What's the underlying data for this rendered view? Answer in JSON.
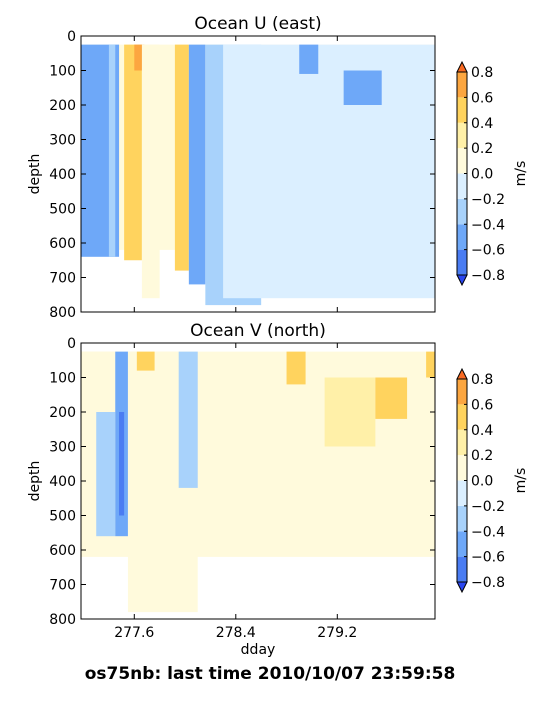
{
  "footer": {
    "text": "os75nb: last time 2010/10/07 23:59:58"
  },
  "colorbar": {
    "levels": [
      -0.8,
      -0.6,
      -0.4,
      -0.2,
      0.0,
      0.2,
      0.4,
      0.6,
      0.8
    ],
    "tick_labels": [
      "−0.8",
      "−0.6",
      "−0.4",
      "−0.2",
      "0.0",
      "0.2",
      "0.4",
      "0.6",
      "0.8"
    ],
    "colors": [
      "#2a46f0",
      "#4a7cf2",
      "#6ea8f8",
      "#a8d2fb",
      "#dbefff",
      "#fffadc",
      "#fff0a8",
      "#ffd35e",
      "#fca640",
      "#f96a22"
    ],
    "label": "m/s"
  },
  "chart_data": [
    {
      "type": "heatmap",
      "title": "Ocean U (east)",
      "xlabel": "",
      "ylabel": "depth",
      "xlim": [
        277.18,
        279.97
      ],
      "ylim": [
        800,
        0
      ],
      "x_ticks": [
        277.6,
        278.4,
        279.2
      ],
      "x_tick_labels": [
        "",
        "",
        ""
      ],
      "y_ticks": [
        0,
        100,
        200,
        300,
        400,
        500,
        600,
        700,
        800
      ],
      "y_tick_labels": [
        "0",
        "100",
        "200",
        "300",
        "400",
        "500",
        "600",
        "700",
        "800"
      ],
      "colorbar_label": "m/s",
      "features": [
        {
          "x": [
            277.18,
            277.48
          ],
          "depth": [
            0,
            640
          ],
          "value": -0.5
        },
        {
          "x": [
            277.4,
            277.45
          ],
          "depth": [
            0,
            640
          ],
          "value": -0.25
        },
        {
          "x": [
            277.52,
            277.66
          ],
          "depth": [
            0,
            650
          ],
          "value": 0.5
        },
        {
          "x": [
            277.6,
            277.68
          ],
          "depth": [
            0,
            100
          ],
          "value": 0.7
        },
        {
          "x": [
            277.66,
            277.8
          ],
          "depth": [
            0,
            760
          ],
          "value": 0.15
        },
        {
          "x": [
            277.92,
            278.03
          ],
          "depth": [
            0,
            680
          ],
          "value": 0.5
        },
        {
          "x": [
            278.03,
            278.16
          ],
          "depth": [
            0,
            720
          ],
          "value": -0.5
        },
        {
          "x": [
            278.16,
            278.6
          ],
          "depth": [
            0,
            780
          ],
          "value": -0.25
        },
        {
          "x": [
            278.3,
            279.97
          ],
          "depth": [
            0,
            760
          ],
          "value": -0.1
        },
        {
          "x": [
            278.9,
            279.05
          ],
          "depth": [
            0,
            110
          ],
          "value": -0.5
        },
        {
          "x": [
            279.25,
            279.55
          ],
          "depth": [
            100,
            200
          ],
          "value": -0.5
        }
      ]
    },
    {
      "type": "heatmap",
      "title": "Ocean V (north)",
      "xlabel": "dday",
      "ylabel": "depth",
      "xlim": [
        277.18,
        279.97
      ],
      "ylim": [
        800,
        0
      ],
      "x_ticks": [
        277.6,
        278.4,
        279.2
      ],
      "x_tick_labels": [
        "277.6",
        "278.4",
        "279.2"
      ],
      "y_ticks": [
        0,
        100,
        200,
        300,
        400,
        500,
        600,
        700,
        800
      ],
      "y_tick_labels": [
        "0",
        "100",
        "200",
        "300",
        "400",
        "500",
        "600",
        "700",
        "800"
      ],
      "colorbar_label": "m/s",
      "features": [
        {
          "x": [
            277.18,
            277.45
          ],
          "depth": [
            0,
            580
          ],
          "value": 0.1
        },
        {
          "x": [
            277.3,
            277.45
          ],
          "depth": [
            200,
            560
          ],
          "value": -0.3
        },
        {
          "x": [
            277.45,
            277.55
          ],
          "depth": [
            0,
            560
          ],
          "value": -0.5
        },
        {
          "x": [
            277.48,
            277.52
          ],
          "depth": [
            200,
            500
          ],
          "value": -0.7
        },
        {
          "x": [
            277.55,
            278.1
          ],
          "depth": [
            0,
            780
          ],
          "value": 0.1
        },
        {
          "x": [
            277.62,
            277.76
          ],
          "depth": [
            0,
            80
          ],
          "value": 0.5
        },
        {
          "x": [
            277.95,
            278.1
          ],
          "depth": [
            0,
            420
          ],
          "value": -0.3
        },
        {
          "x": [
            278.8,
            278.95
          ],
          "depth": [
            0,
            120
          ],
          "value": 0.5
        },
        {
          "x": [
            279.1,
            279.5
          ],
          "depth": [
            100,
            300
          ],
          "value": 0.3
        },
        {
          "x": [
            279.5,
            279.75
          ],
          "depth": [
            100,
            220
          ],
          "value": 0.4
        },
        {
          "x": [
            279.9,
            279.97
          ],
          "depth": [
            0,
            100
          ],
          "value": 0.5
        }
      ]
    }
  ]
}
